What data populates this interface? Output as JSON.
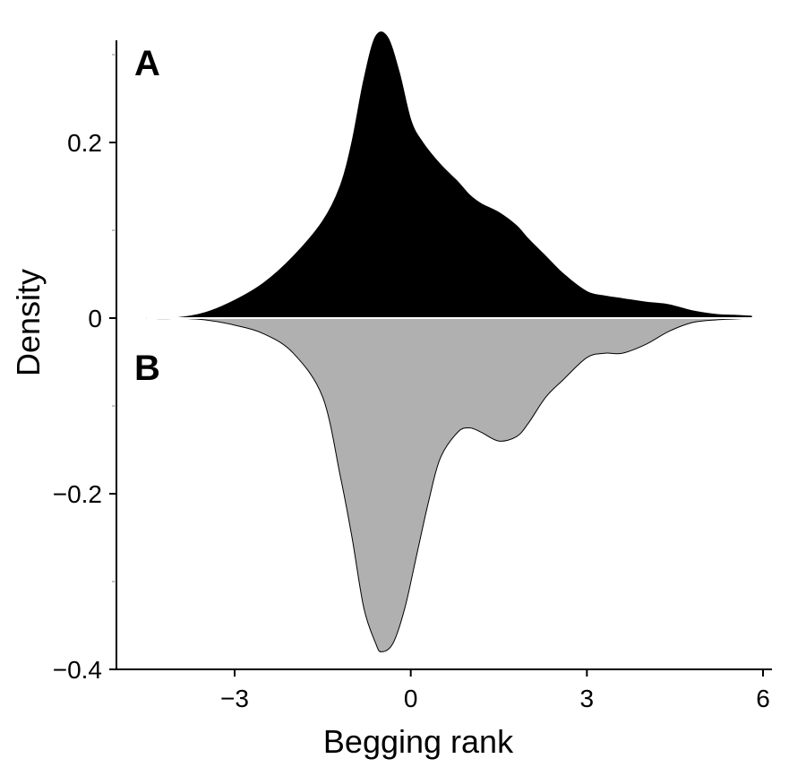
{
  "chart_data": {
    "type": "area",
    "xlabel": "Begging rank",
    "ylabel": "Density",
    "xlim": [
      -4.6,
      6.1
    ],
    "ylim": [
      -0.4,
      0.34
    ],
    "x_ticks": [
      {
        "value": -3,
        "label": "−3"
      },
      {
        "value": 0,
        "label": "0"
      },
      {
        "value": 3,
        "label": "3"
      },
      {
        "value": 6,
        "label": "6"
      }
    ],
    "y_ticks": [
      {
        "value": 0.2,
        "label": "0.2"
      },
      {
        "value": 0,
        "label": "0"
      },
      {
        "value": -0.2,
        "label": "−0.2"
      },
      {
        "value": -0.4,
        "label": "−0.4"
      }
    ],
    "y_minor_ticks": [
      0.3,
      0.1,
      -0.1,
      -0.3
    ],
    "grid": false,
    "legend": "none",
    "series": [
      {
        "name": "A",
        "color": "#000000",
        "direction": "up",
        "x": [
          -4.5,
          -4.0,
          -3.5,
          -3.0,
          -2.5,
          -2.0,
          -1.5,
          -1.2,
          -1.0,
          -0.8,
          -0.6,
          -0.4,
          -0.2,
          0.0,
          0.2,
          0.5,
          0.8,
          1.0,
          1.2,
          1.5,
          1.8,
          2.0,
          2.3,
          2.6,
          3.0,
          3.3,
          3.6,
          4.0,
          4.4,
          4.8,
          5.2,
          5.5,
          5.8
        ],
        "values": [
          0.0,
          0.0,
          0.006,
          0.02,
          0.04,
          0.07,
          0.11,
          0.15,
          0.2,
          0.27,
          0.32,
          0.32,
          0.28,
          0.225,
          0.2,
          0.175,
          0.155,
          0.14,
          0.13,
          0.12,
          0.105,
          0.09,
          0.07,
          0.05,
          0.03,
          0.025,
          0.022,
          0.018,
          0.015,
          0.008,
          0.004,
          0.003,
          0.002
        ]
      },
      {
        "name": "B",
        "color": "#b0b0b0",
        "direction": "down",
        "x": [
          -4.0,
          -3.5,
          -3.0,
          -2.5,
          -2.0,
          -1.5,
          -1.2,
          -1.0,
          -0.8,
          -0.6,
          -0.5,
          -0.3,
          -0.1,
          0.1,
          0.3,
          0.5,
          0.8,
          1.0,
          1.2,
          1.5,
          1.8,
          2.0,
          2.3,
          2.6,
          3.0,
          3.3,
          3.6,
          4.0,
          4.4,
          4.8,
          5.2,
          5.5,
          5.8
        ],
        "values": [
          0.0,
          -0.002,
          -0.008,
          -0.018,
          -0.04,
          -0.09,
          -0.18,
          -0.25,
          -0.33,
          -0.37,
          -0.38,
          -0.37,
          -0.33,
          -0.27,
          -0.21,
          -0.16,
          -0.13,
          -0.125,
          -0.13,
          -0.14,
          -0.135,
          -0.12,
          -0.09,
          -0.07,
          -0.045,
          -0.04,
          -0.04,
          -0.03,
          -0.015,
          -0.005,
          -0.002,
          -0.001,
          0.0
        ]
      }
    ]
  }
}
